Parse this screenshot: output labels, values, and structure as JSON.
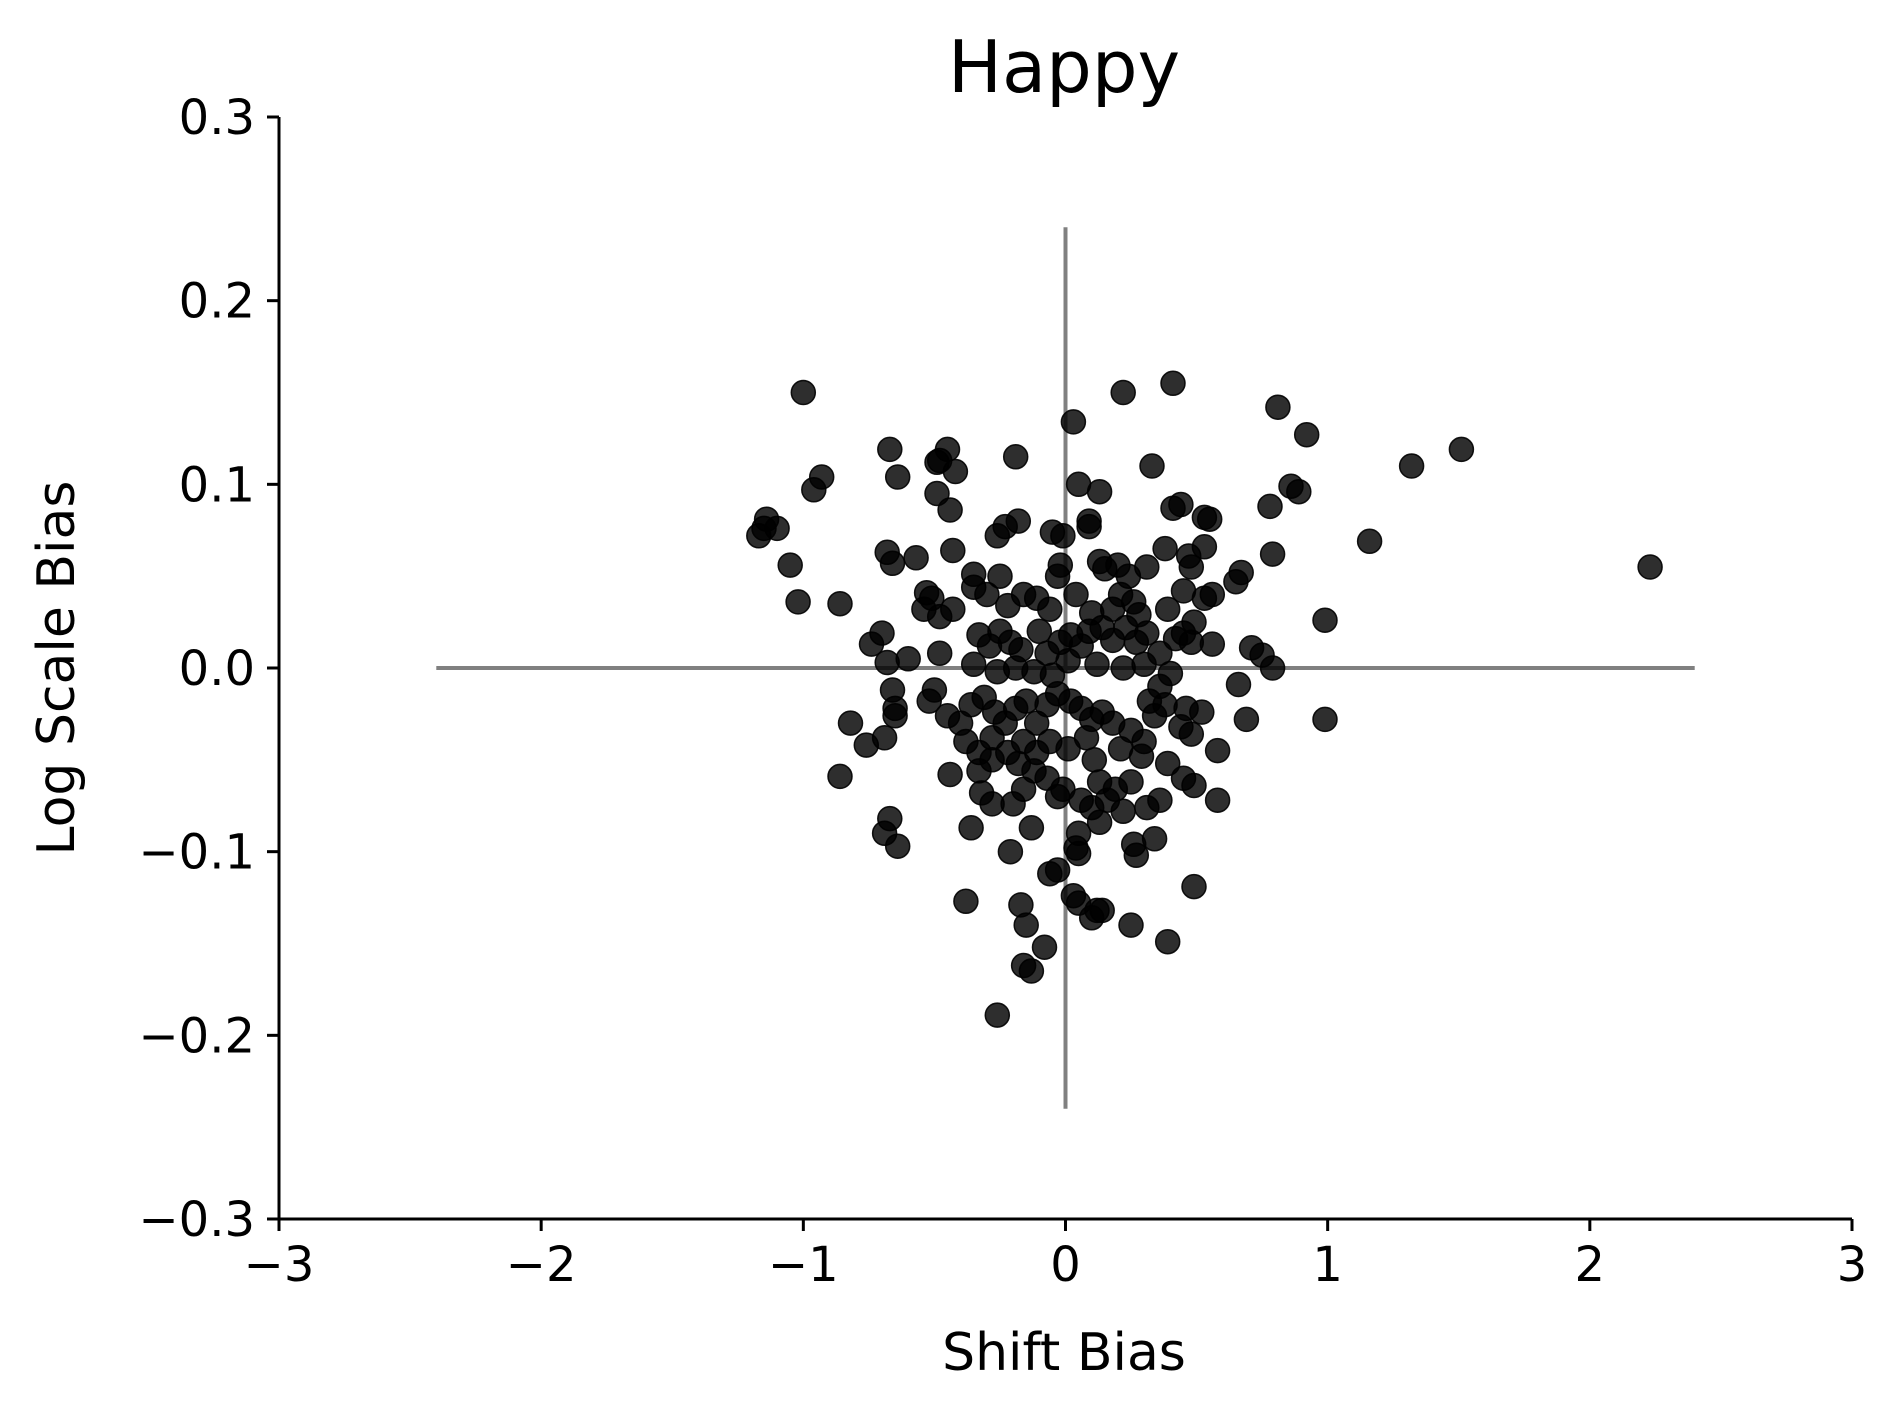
{
  "chart_data": {
    "type": "scatter",
    "title": "Happy",
    "xlabel": "Shift Bias",
    "ylabel": "Log Scale Bias",
    "xlim": [
      -3,
      3
    ],
    "ylim": [
      -0.3,
      0.3
    ],
    "xticks": [
      -3,
      -2,
      -1,
      0,
      1,
      2,
      3
    ],
    "xtick_labels": [
      "−3",
      "−2",
      "−1",
      "0",
      "1",
      "2",
      "3"
    ],
    "yticks": [
      -0.3,
      -0.2,
      -0.1,
      0.0,
      0.1,
      0.2,
      0.3
    ],
    "ytick_labels": [
      "−0.3",
      "−0.2",
      "−0.1",
      "0.0",
      "0.1",
      "0.2",
      "0.3"
    ],
    "grid": false,
    "legend": "none",
    "reference_lines": {
      "horizontal": {
        "y": 0,
        "x_range": [
          -2.4,
          2.4
        ]
      },
      "vertical": {
        "x": 0,
        "y_range": [
          -0.24,
          0.24
        ]
      },
      "color": "#808080"
    },
    "marker_color": "#000000",
    "points": [
      [
        -1.0,
        0.15
      ],
      [
        0.22,
        0.15
      ],
      [
        0.41,
        0.155
      ],
      [
        0.81,
        0.142
      ],
      [
        0.03,
        0.134
      ],
      [
        0.92,
        0.127
      ],
      [
        1.51,
        0.119
      ],
      [
        1.32,
        0.11
      ],
      [
        -0.67,
        0.119
      ],
      [
        -0.45,
        0.119
      ],
      [
        -0.19,
        0.115
      ],
      [
        -0.48,
        0.113
      ],
      [
        -0.49,
        0.112
      ],
      [
        0.33,
        0.11
      ],
      [
        -0.42,
        0.107
      ],
      [
        -0.64,
        0.104
      ],
      [
        -0.93,
        0.104
      ],
      [
        -0.96,
        0.097
      ],
      [
        0.05,
        0.1
      ],
      [
        0.13,
        0.096
      ],
      [
        0.86,
        0.099
      ],
      [
        0.89,
        0.096
      ],
      [
        -0.49,
        0.095
      ],
      [
        -0.44,
        0.086
      ],
      [
        0.44,
        0.089
      ],
      [
        0.41,
        0.087
      ],
      [
        0.78,
        0.088
      ],
      [
        0.53,
        0.082
      ],
      [
        0.55,
        0.081
      ],
      [
        -1.14,
        0.081
      ],
      [
        -1.15,
        0.076
      ],
      [
        -1.1,
        0.076
      ],
      [
        -1.17,
        0.072
      ],
      [
        -0.18,
        0.08
      ],
      [
        -0.23,
        0.077
      ],
      [
        -0.26,
        0.072
      ],
      [
        0.09,
        0.08
      ],
      [
        0.09,
        0.077
      ],
      [
        -0.05,
        0.074
      ],
      [
        -0.01,
        0.072
      ],
      [
        1.16,
        0.069
      ],
      [
        2.23,
        0.055
      ],
      [
        0.38,
        0.065
      ],
      [
        0.53,
        0.066
      ],
      [
        -0.68,
        0.063
      ],
      [
        -0.43,
        0.064
      ],
      [
        -0.66,
        0.057
      ],
      [
        -0.57,
        0.06
      ],
      [
        -1.05,
        0.056
      ],
      [
        0.13,
        0.058
      ],
      [
        0.15,
        0.054
      ],
      [
        0.2,
        0.056
      ],
      [
        0.31,
        0.055
      ],
      [
        0.48,
        0.055
      ],
      [
        0.47,
        0.061
      ],
      [
        0.67,
        0.052
      ],
      [
        0.65,
        0.047
      ],
      [
        0.79,
        0.062
      ],
      [
        -0.35,
        0.051
      ],
      [
        -0.25,
        0.05
      ],
      [
        -0.03,
        0.05
      ],
      [
        -0.02,
        0.056
      ],
      [
        0.24,
        0.05
      ],
      [
        -1.02,
        0.036
      ],
      [
        -0.86,
        0.035
      ],
      [
        -0.53,
        0.041
      ],
      [
        -0.51,
        0.038
      ],
      [
        -0.35,
        0.044
      ],
      [
        -0.3,
        0.04
      ],
      [
        -0.16,
        0.04
      ],
      [
        -0.11,
        0.038
      ],
      [
        0.04,
        0.04
      ],
      [
        0.21,
        0.04
      ],
      [
        0.26,
        0.036
      ],
      [
        0.45,
        0.042
      ],
      [
        0.53,
        0.038
      ],
      [
        0.56,
        0.04
      ],
      [
        0.39,
        0.032
      ],
      [
        -0.54,
        0.032
      ],
      [
        -0.48,
        0.028
      ],
      [
        -0.43,
        0.032
      ],
      [
        -0.22,
        0.034
      ],
      [
        -0.06,
        0.032
      ],
      [
        0.1,
        0.03
      ],
      [
        0.18,
        0.032
      ],
      [
        0.28,
        0.029
      ],
      [
        0.49,
        0.025
      ],
      [
        0.99,
        0.026
      ],
      [
        0.71,
        0.011
      ],
      [
        0.75,
        0.007
      ],
      [
        0.79,
        0.0
      ],
      [
        -0.7,
        0.019
      ],
      [
        -0.74,
        0.013
      ],
      [
        -0.68,
        0.003
      ],
      [
        -0.6,
        0.005
      ],
      [
        -0.48,
        0.008
      ],
      [
        -0.33,
        0.018
      ],
      [
        -0.29,
        0.012
      ],
      [
        -0.25,
        0.02
      ],
      [
        -0.21,
        0.014
      ],
      [
        -0.17,
        0.01
      ],
      [
        -0.1,
        0.02
      ],
      [
        -0.07,
        0.008
      ],
      [
        -0.02,
        0.014
      ],
      [
        0.02,
        0.018
      ],
      [
        0.06,
        0.012
      ],
      [
        0.09,
        0.02
      ],
      [
        0.14,
        0.022
      ],
      [
        0.18,
        0.015
      ],
      [
        0.23,
        0.022
      ],
      [
        0.27,
        0.014
      ],
      [
        0.31,
        0.019
      ],
      [
        0.36,
        0.008
      ],
      [
        0.42,
        0.016
      ],
      [
        0.45,
        0.019
      ],
      [
        0.48,
        0.014
      ],
      [
        0.56,
        0.013
      ],
      [
        0.3,
        0.002
      ],
      [
        0.22,
        0.0
      ],
      [
        0.12,
        0.002
      ],
      [
        0.01,
        0.004
      ],
      [
        -0.05,
        -0.004
      ],
      [
        -0.12,
        -0.002
      ],
      [
        -0.19,
        0.0
      ],
      [
        -0.26,
        -0.002
      ],
      [
        -0.35,
        0.002
      ],
      [
        0.4,
        -0.003
      ],
      [
        0.36,
        -0.01
      ],
      [
        0.32,
        -0.018
      ],
      [
        0.38,
        -0.02
      ],
      [
        0.46,
        -0.022
      ],
      [
        0.52,
        -0.024
      ],
      [
        0.66,
        -0.009
      ],
      [
        0.69,
        -0.028
      ],
      [
        0.99,
        -0.028
      ],
      [
        -0.66,
        -0.012
      ],
      [
        -0.52,
        -0.018
      ],
      [
        -0.5,
        -0.012
      ],
      [
        -0.45,
        -0.026
      ],
      [
        -0.4,
        -0.03
      ],
      [
        -0.36,
        -0.02
      ],
      [
        -0.31,
        -0.016
      ],
      [
        -0.27,
        -0.024
      ],
      [
        -0.23,
        -0.03
      ],
      [
        -0.19,
        -0.022
      ],
      [
        -0.15,
        -0.018
      ],
      [
        -0.11,
        -0.03
      ],
      [
        -0.07,
        -0.02
      ],
      [
        -0.03,
        -0.014
      ],
      [
        0.02,
        -0.018
      ],
      [
        0.06,
        -0.022
      ],
      [
        0.1,
        -0.028
      ],
      [
        0.14,
        -0.024
      ],
      [
        0.18,
        -0.03
      ],
      [
        0.25,
        -0.034
      ],
      [
        0.3,
        -0.04
      ],
      [
        0.34,
        -0.026
      ],
      [
        0.44,
        -0.032
      ],
      [
        0.48,
        -0.036
      ],
      [
        0.58,
        -0.045
      ],
      [
        -0.82,
        -0.03
      ],
      [
        -0.76,
        -0.042
      ],
      [
        -0.69,
        -0.038
      ],
      [
        -0.65,
        -0.022
      ],
      [
        -0.65,
        -0.026
      ],
      [
        -0.38,
        -0.04
      ],
      [
        -0.33,
        -0.046
      ],
      [
        -0.28,
        -0.038
      ],
      [
        -0.22,
        -0.046
      ],
      [
        -0.16,
        -0.04
      ],
      [
        -0.11,
        -0.046
      ],
      [
        -0.06,
        -0.04
      ],
      [
        0.01,
        -0.044
      ],
      [
        0.08,
        -0.038
      ],
      [
        0.11,
        -0.05
      ],
      [
        0.21,
        -0.044
      ],
      [
        0.29,
        -0.048
      ],
      [
        0.39,
        -0.052
      ],
      [
        0.45,
        -0.06
      ],
      [
        0.49,
        -0.064
      ],
      [
        -0.86,
        -0.059
      ],
      [
        -0.44,
        -0.058
      ],
      [
        -0.33,
        -0.056
      ],
      [
        -0.28,
        -0.05
      ],
      [
        -0.18,
        -0.052
      ],
      [
        -0.12,
        -0.056
      ],
      [
        -0.07,
        -0.06
      ],
      [
        -0.01,
        -0.066
      ],
      [
        0.13,
        -0.062
      ],
      [
        0.19,
        -0.066
      ],
      [
        0.25,
        -0.062
      ],
      [
        0.16,
        -0.072
      ],
      [
        0.1,
        -0.076
      ],
      [
        0.06,
        -0.072
      ],
      [
        -0.03,
        -0.07
      ],
      [
        -0.16,
        -0.066
      ],
      [
        -0.2,
        -0.074
      ],
      [
        -0.32,
        -0.068
      ],
      [
        -0.28,
        -0.074
      ],
      [
        0.22,
        -0.078
      ],
      [
        0.31,
        -0.076
      ],
      [
        0.36,
        -0.072
      ],
      [
        0.58,
        -0.072
      ],
      [
        -0.67,
        -0.082
      ],
      [
        -0.69,
        -0.09
      ],
      [
        -0.64,
        -0.097
      ],
      [
        -0.36,
        -0.087
      ],
      [
        -0.13,
        -0.087
      ],
      [
        0.05,
        -0.09
      ],
      [
        0.13,
        -0.084
      ],
      [
        0.26,
        -0.096
      ],
      [
        0.27,
        -0.102
      ],
      [
        0.34,
        -0.093
      ],
      [
        0.04,
        -0.098
      ],
      [
        0.05,
        -0.101
      ],
      [
        -0.21,
        -0.1
      ],
      [
        -0.06,
        -0.112
      ],
      [
        -0.03,
        -0.11
      ],
      [
        0.49,
        -0.119
      ],
      [
        -0.38,
        -0.127
      ],
      [
        -0.17,
        -0.129
      ],
      [
        0.03,
        -0.124
      ],
      [
        0.05,
        -0.128
      ],
      [
        0.1,
        -0.136
      ],
      [
        0.12,
        -0.132
      ],
      [
        0.14,
        -0.132
      ],
      [
        0.25,
        -0.14
      ],
      [
        -0.15,
        -0.14
      ],
      [
        0.39,
        -0.149
      ],
      [
        -0.08,
        -0.152
      ],
      [
        -0.16,
        -0.162
      ],
      [
        -0.13,
        -0.165
      ],
      [
        -0.26,
        -0.189
      ]
    ]
  }
}
